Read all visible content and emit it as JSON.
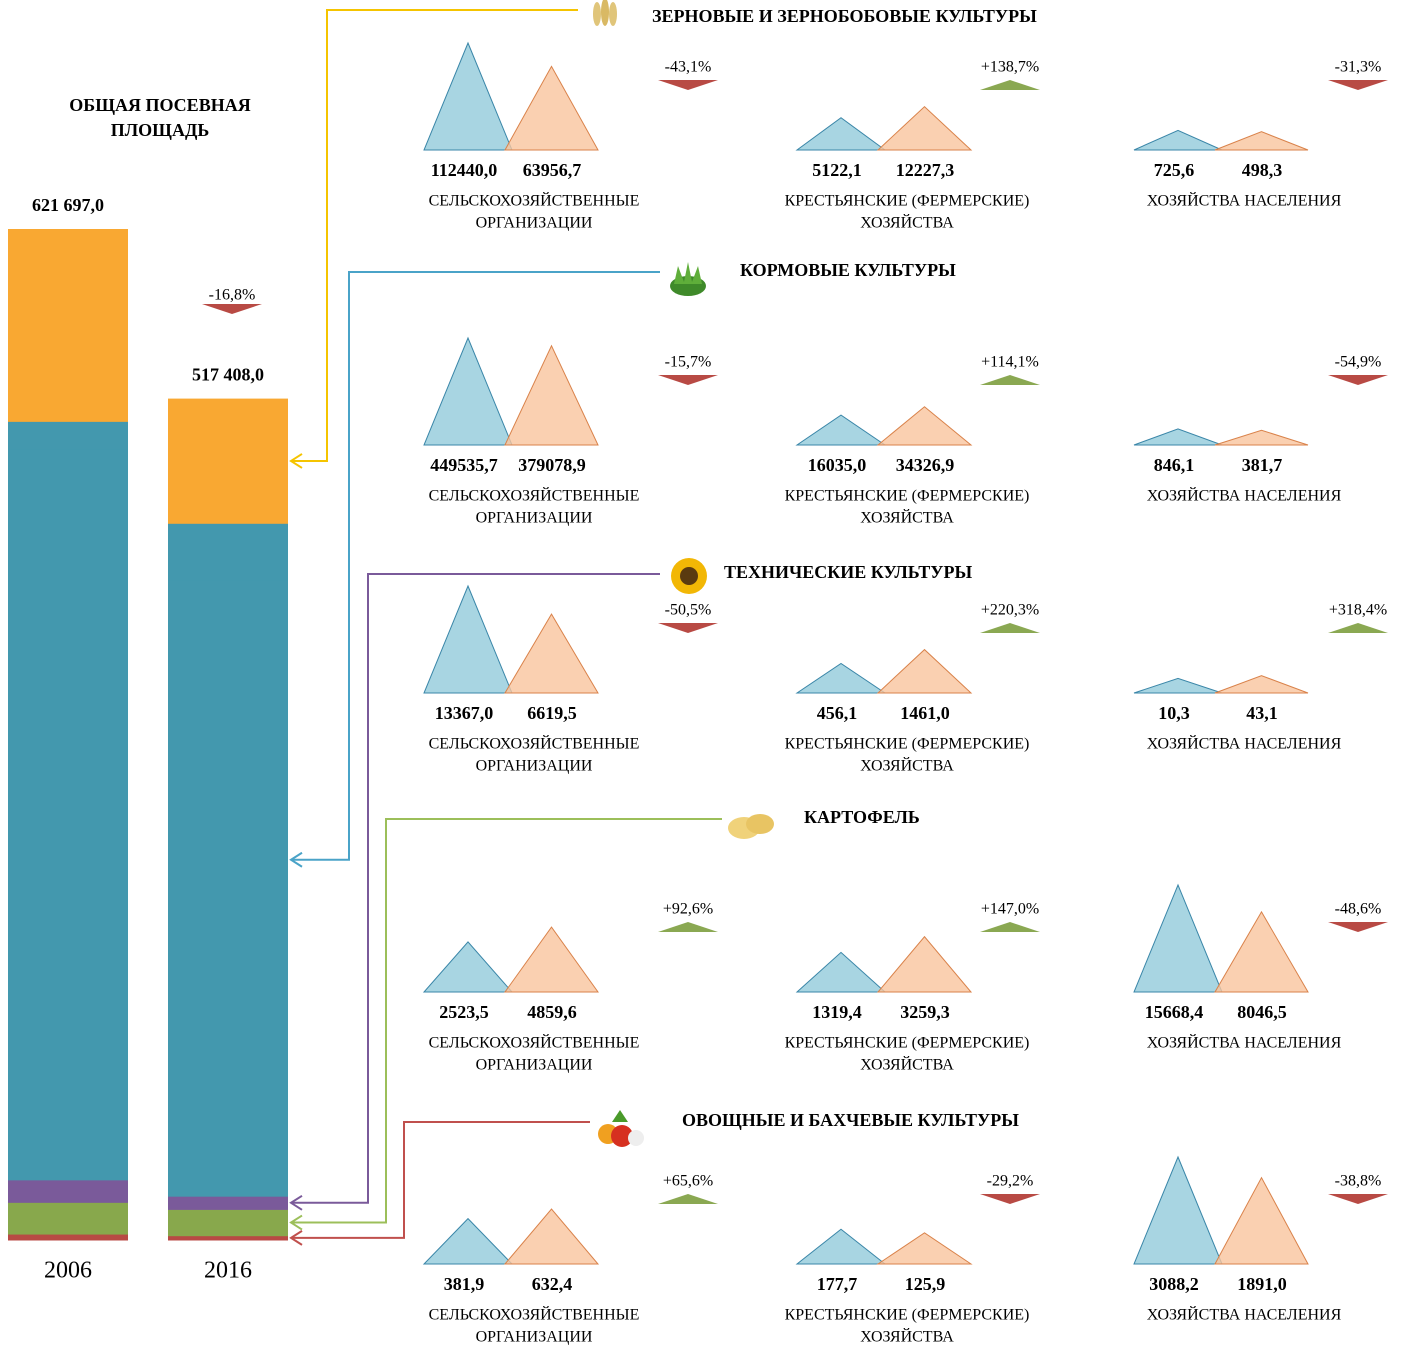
{
  "title": [
    "ОБЩАЯ ПОСЕВНАЯ",
    "ПЛОЩАДЬ"
  ],
  "years": [
    "2006",
    "2016"
  ],
  "totals": {
    "values": [
      621697.0,
      517408.0
    ],
    "value_labels": [
      "621 697,0",
      "517 408,0"
    ],
    "change": -16.8,
    "change_label": "-16,8%"
  },
  "farm_types": [
    [
      "СЕЛЬСКОХОЗЯЙСТВЕННЫЕ",
      "ОРГАНИЗАЦИИ"
    ],
    [
      "КРЕСТЬЯНСКИЕ (ФЕРМЕРСКИЕ)",
      "ХОЗЯЙСТВА"
    ],
    [
      "ХОЗЯЙСТВА НАСЕЛЕНИЯ"
    ]
  ],
  "colors": {
    "2006": "#a8d5e2",
    "2016": "#f9c49e",
    "up": "#8aa852",
    "down": "#b84a44"
  },
  "sections": [
    {
      "title": "ЗЕРНОВЫЕ И ЗЕРНОБОБОВЫЕ КУЛЬТУРЫ",
      "color": "#f9a832",
      "line_color": "#f5c400",
      "panels": [
        {
          "values": [
            112440.0,
            63956.7
          ],
          "value_labels": [
            "112440,0",
            "63956,7"
          ],
          "change": -43.1,
          "change_label": "-43,1%"
        },
        {
          "values": [
            5122.1,
            12227.3
          ],
          "value_labels": [
            "5122,1",
            "12227,3"
          ],
          "change": 138.7,
          "change_label": "+138,7%"
        },
        {
          "values": [
            725.6,
            498.3
          ],
          "value_labels": [
            "725,6",
            "498,3"
          ],
          "change": -31.3,
          "change_label": "-31,3%"
        }
      ]
    },
    {
      "title": "КОРМОВЫЕ КУЛЬТУРЫ",
      "color": "#4398ae",
      "line_color": "#4aa3c8",
      "panels": [
        {
          "values": [
            449535.7,
            379078.9
          ],
          "value_labels": [
            "449535,7",
            "379078,9"
          ],
          "change": -15.7,
          "change_label": "-15,7%"
        },
        {
          "values": [
            16035.0,
            34326.9
          ],
          "value_labels": [
            "16035,0",
            "34326,9"
          ],
          "change": 114.1,
          "change_label": "+114,1%"
        },
        {
          "values": [
            846.1,
            381.7
          ],
          "value_labels": [
            "846,1",
            "381,7"
          ],
          "change": -54.9,
          "change_label": "-54,9%"
        }
      ]
    },
    {
      "title": "ТЕХНИЧЕСКИЕ КУЛЬТУРЫ",
      "color": "#7a5a9a",
      "line_color": "#7a5a9a",
      "panels": [
        {
          "values": [
            13367.0,
            6619.5
          ],
          "value_labels": [
            "13367,0",
            "6619,5"
          ],
          "change": -50.5,
          "change_label": "-50,5%"
        },
        {
          "values": [
            456.1,
            1461.0
          ],
          "value_labels": [
            "456,1",
            "1461,0"
          ],
          "change": 220.3,
          "change_label": "+220,3%"
        },
        {
          "values": [
            10.3,
            43.1
          ],
          "value_labels": [
            "10,3",
            "43,1"
          ],
          "change": 318.4,
          "change_label": "+318,4%"
        }
      ]
    },
    {
      "title": "КАРТОФЕЛЬ",
      "color": "#88a84c",
      "line_color": "#9cbf5a",
      "panels": [
        {
          "values": [
            2523.5,
            4859.6
          ],
          "value_labels": [
            "2523,5",
            "4859,6"
          ],
          "change": 92.6,
          "change_label": "+92,6%"
        },
        {
          "values": [
            1319.4,
            3259.3
          ],
          "value_labels": [
            "1319,4",
            "3259,3"
          ],
          "change": 147.0,
          "change_label": "+147,0%"
        },
        {
          "values": [
            15668.4,
            8046.5
          ],
          "value_labels": [
            "15668,4",
            "8046,5"
          ],
          "change": -48.6,
          "change_label": "-48,6%"
        }
      ]
    },
    {
      "title": "ОВОЩНЫЕ И БАХЧЕВЫЕ КУЛЬТУРЫ",
      "color": "#b84a44",
      "line_color": "#c0504d",
      "panels": [
        {
          "values": [
            381.9,
            632.4
          ],
          "value_labels": [
            "381,9",
            "632,4"
          ],
          "change": 65.6,
          "change_label": "+65,6%"
        },
        {
          "values": [
            177.7,
            125.9
          ],
          "value_labels": [
            "177,7",
            "125,9"
          ],
          "change": -29.2,
          "change_label": "-29,2%"
        },
        {
          "values": [
            3088.2,
            1891.0
          ],
          "value_labels": [
            "3088,2",
            "1891,0"
          ],
          "change": -38.8,
          "change_label": "-38,8%"
        }
      ]
    }
  ]
}
